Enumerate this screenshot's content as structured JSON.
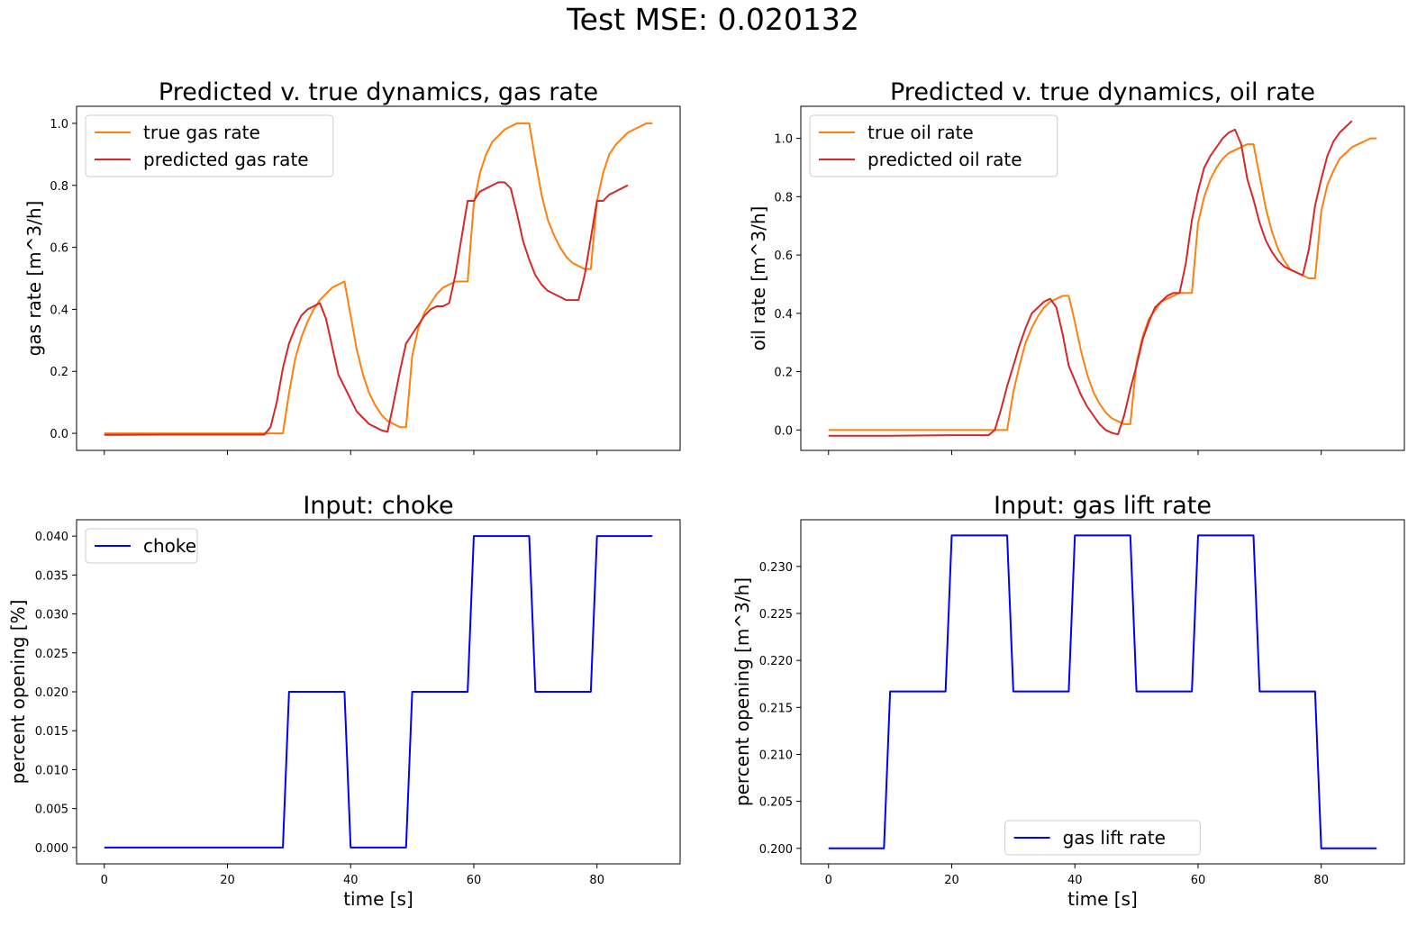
{
  "figure": {
    "title": "Test MSE: 0.020132"
  },
  "colors": {
    "true_rate": "#ff7f0e",
    "predicted_rate": "#d62728",
    "input": "#0000ff",
    "frame": "#000000"
  },
  "chart_data": [
    {
      "id": "gas-rate",
      "type": "line",
      "title": "Predicted v. true dynamics, gas rate",
      "xlabel": "",
      "ylabel": "gas rate [m^3/h]",
      "xlim": [
        -4.5,
        93.5
      ],
      "ylim": [
        -0.055,
        1.055
      ],
      "xticks": [
        0,
        20,
        40,
        60,
        80
      ],
      "xtick_labels": [
        "",
        "",
        "",
        "",
        ""
      ],
      "yticks": [
        0.0,
        0.2,
        0.4,
        0.6,
        0.8,
        1.0
      ],
      "ytick_labels": [
        "0.0",
        "0.2",
        "0.4",
        "0.6",
        "0.8",
        "1.0"
      ],
      "legend": {
        "placement": "top-left"
      },
      "series": [
        {
          "name": "true gas rate",
          "color": "#ff7f0e",
          "x": [
            0,
            29,
            30,
            31,
            32,
            33,
            34,
            35,
            36,
            37,
            38,
            39,
            40,
            41,
            42,
            43,
            44,
            45,
            46,
            47,
            48,
            49,
            50,
            51,
            52,
            53,
            54,
            55,
            56,
            57,
            58,
            59,
            60,
            61,
            62,
            63,
            64,
            65,
            66,
            67,
            68,
            69,
            70,
            71,
            72,
            73,
            74,
            75,
            76,
            77,
            78,
            79,
            80,
            81,
            82,
            83,
            84,
            85,
            86,
            87,
            88,
            89
          ],
          "y": [
            0.0,
            0.0,
            0.13,
            0.24,
            0.31,
            0.36,
            0.4,
            0.43,
            0.45,
            0.47,
            0.48,
            0.49,
            0.38,
            0.27,
            0.19,
            0.13,
            0.09,
            0.06,
            0.04,
            0.03,
            0.02,
            0.02,
            0.25,
            0.34,
            0.39,
            0.42,
            0.45,
            0.47,
            0.48,
            0.49,
            0.49,
            0.49,
            0.74,
            0.84,
            0.9,
            0.94,
            0.96,
            0.98,
            0.99,
            1.0,
            1.0,
            1.0,
            0.88,
            0.77,
            0.69,
            0.64,
            0.6,
            0.57,
            0.55,
            0.54,
            0.53,
            0.53,
            0.75,
            0.84,
            0.9,
            0.93,
            0.95,
            0.97,
            0.98,
            0.99,
            1.0,
            1.0
          ]
        },
        {
          "name": "predicted gas rate",
          "color": "#d62728",
          "x": [
            0,
            10,
            20,
            26,
            27,
            28,
            29,
            30,
            31,
            32,
            33,
            34,
            35,
            36,
            37,
            38,
            39,
            40,
            41,
            42,
            43,
            44,
            45,
            46,
            47,
            48,
            49,
            50,
            51,
            52,
            53,
            54,
            55,
            56,
            57,
            58,
            59,
            60,
            61,
            62,
            63,
            64,
            65,
            66,
            67,
            68,
            69,
            70,
            71,
            72,
            73,
            74,
            75,
            76,
            77,
            78,
            79,
            80,
            81,
            82,
            83,
            84,
            85
          ],
          "y": [
            -0.005,
            -0.004,
            -0.004,
            -0.004,
            0.02,
            0.1,
            0.21,
            0.29,
            0.34,
            0.38,
            0.4,
            0.41,
            0.42,
            0.37,
            0.28,
            0.19,
            0.15,
            0.11,
            0.07,
            0.05,
            0.03,
            0.02,
            0.01,
            0.005,
            0.1,
            0.2,
            0.29,
            0.32,
            0.35,
            0.38,
            0.4,
            0.41,
            0.41,
            0.42,
            0.51,
            0.63,
            0.75,
            0.75,
            0.78,
            0.79,
            0.8,
            0.81,
            0.81,
            0.79,
            0.71,
            0.62,
            0.56,
            0.51,
            0.48,
            0.46,
            0.45,
            0.44,
            0.43,
            0.43,
            0.43,
            0.51,
            0.63,
            0.75,
            0.75,
            0.77,
            0.78,
            0.79,
            0.8
          ]
        }
      ]
    },
    {
      "id": "oil-rate",
      "type": "line",
      "title": "Predicted v. true dynamics, oil rate",
      "xlabel": "",
      "ylabel": "oil rate [m^3/h]",
      "xlim": [
        -4.5,
        93.5
      ],
      "ylim": [
        -0.07,
        1.11
      ],
      "xticks": [
        0,
        20,
        40,
        60,
        80
      ],
      "xtick_labels": [
        "",
        "",
        "",
        "",
        ""
      ],
      "yticks": [
        0.0,
        0.2,
        0.4,
        0.6,
        0.8,
        1.0
      ],
      "ytick_labels": [
        "0.0",
        "0.2",
        "0.4",
        "0.6",
        "0.8",
        "1.0"
      ],
      "legend": {
        "placement": "top-left"
      },
      "series": [
        {
          "name": "true oil rate",
          "color": "#ff7f0e",
          "x": [
            0,
            29,
            30,
            31,
            32,
            33,
            34,
            35,
            36,
            37,
            38,
            39,
            40,
            41,
            42,
            43,
            44,
            45,
            46,
            47,
            48,
            49,
            50,
            51,
            52,
            53,
            54,
            55,
            56,
            57,
            58,
            59,
            60,
            61,
            62,
            63,
            64,
            65,
            66,
            67,
            68,
            69,
            70,
            71,
            72,
            73,
            74,
            75,
            76,
            77,
            78,
            79,
            80,
            81,
            82,
            83,
            84,
            85,
            86,
            87,
            88,
            89
          ],
          "y": [
            0.0,
            0.0,
            0.13,
            0.22,
            0.3,
            0.35,
            0.39,
            0.42,
            0.44,
            0.45,
            0.46,
            0.46,
            0.37,
            0.27,
            0.19,
            0.13,
            0.09,
            0.06,
            0.04,
            0.03,
            0.02,
            0.02,
            0.23,
            0.32,
            0.38,
            0.41,
            0.44,
            0.45,
            0.46,
            0.47,
            0.47,
            0.47,
            0.71,
            0.8,
            0.86,
            0.9,
            0.93,
            0.95,
            0.96,
            0.97,
            0.98,
            0.98,
            0.87,
            0.76,
            0.68,
            0.62,
            0.58,
            0.55,
            0.54,
            0.53,
            0.52,
            0.52,
            0.75,
            0.84,
            0.89,
            0.93,
            0.95,
            0.97,
            0.98,
            0.99,
            1.0,
            1.0
          ]
        },
        {
          "name": "predicted oil rate",
          "color": "#d62728",
          "x": [
            0,
            10,
            20,
            26,
            27,
            28,
            29,
            30,
            31,
            32,
            33,
            34,
            35,
            36,
            37,
            38,
            39,
            40,
            41,
            42,
            43,
            44,
            45,
            46,
            47,
            48,
            49,
            50,
            51,
            52,
            53,
            54,
            55,
            56,
            57,
            58,
            59,
            60,
            61,
            62,
            63,
            64,
            65,
            66,
            67,
            68,
            69,
            70,
            71,
            72,
            73,
            74,
            75,
            76,
            77,
            78,
            79,
            80,
            81,
            82,
            83,
            84,
            85
          ],
          "y": [
            -0.02,
            -0.02,
            -0.018,
            -0.018,
            0.0,
            0.07,
            0.15,
            0.22,
            0.29,
            0.35,
            0.4,
            0.42,
            0.44,
            0.45,
            0.42,
            0.33,
            0.22,
            0.17,
            0.12,
            0.08,
            0.05,
            0.02,
            0.0,
            -0.01,
            -0.015,
            0.05,
            0.14,
            0.22,
            0.31,
            0.37,
            0.42,
            0.44,
            0.46,
            0.47,
            0.47,
            0.57,
            0.72,
            0.82,
            0.9,
            0.94,
            0.97,
            1.0,
            1.02,
            1.03,
            0.98,
            0.86,
            0.79,
            0.71,
            0.65,
            0.61,
            0.58,
            0.56,
            0.55,
            0.54,
            0.53,
            0.62,
            0.77,
            0.86,
            0.94,
            0.99,
            1.02,
            1.04,
            1.06
          ]
        }
      ]
    },
    {
      "id": "choke",
      "type": "line",
      "title": "Input: choke",
      "xlabel": "time [s]",
      "ylabel": "percent opening [%]",
      "xlim": [
        -4.5,
        93.5
      ],
      "ylim": [
        -0.0021,
        0.0421
      ],
      "xticks": [
        0,
        20,
        40,
        60,
        80
      ],
      "xtick_labels": [
        "0",
        "20",
        "40",
        "60",
        "80"
      ],
      "yticks": [
        0.0,
        0.005,
        0.01,
        0.015,
        0.02,
        0.025,
        0.03,
        0.035,
        0.04
      ],
      "ytick_labels": [
        "0.000",
        "0.005",
        "0.010",
        "0.015",
        "0.020",
        "0.025",
        "0.030",
        "0.035",
        "0.040"
      ],
      "legend": {
        "placement": "top-left"
      },
      "series": [
        {
          "name": "choke",
          "color": "#0000ff",
          "x": [
            0,
            29,
            30,
            39,
            40,
            49,
            50,
            59,
            60,
            69,
            70,
            79,
            80,
            89
          ],
          "y": [
            0.0,
            0.0,
            0.02,
            0.02,
            0.0,
            0.0,
            0.02,
            0.02,
            0.04,
            0.04,
            0.02,
            0.02,
            0.04,
            0.04
          ]
        }
      ]
    },
    {
      "id": "gas-lift",
      "type": "line",
      "title": "Input: gas lift rate",
      "xlabel": "time [s]",
      "ylabel": "percent opening [m^3/h]",
      "xlim": [
        -4.5,
        93.5
      ],
      "ylim": [
        0.19835,
        0.23497
      ],
      "xticks": [
        0,
        20,
        40,
        60,
        80
      ],
      "xtick_labels": [
        "0",
        "20",
        "40",
        "60",
        "80"
      ],
      "yticks": [
        0.2,
        0.205,
        0.21,
        0.215,
        0.22,
        0.225,
        0.23
      ],
      "ytick_labels": [
        "0.200",
        "0.205",
        "0.210",
        "0.215",
        "0.220",
        "0.225",
        "0.230"
      ],
      "legend": {
        "placement": "lower-center"
      },
      "series": [
        {
          "name": "gas lift rate",
          "color": "#0000ff",
          "x": [
            0,
            9,
            10,
            19,
            20,
            29,
            30,
            39,
            40,
            49,
            50,
            59,
            60,
            69,
            70,
            79,
            80,
            89
          ],
          "y": [
            0.2,
            0.2,
            0.2167,
            0.2167,
            0.2333,
            0.2333,
            0.2167,
            0.2167,
            0.2333,
            0.2333,
            0.2167,
            0.2167,
            0.2333,
            0.2333,
            0.2167,
            0.2167,
            0.2,
            0.2
          ]
        }
      ]
    }
  ]
}
